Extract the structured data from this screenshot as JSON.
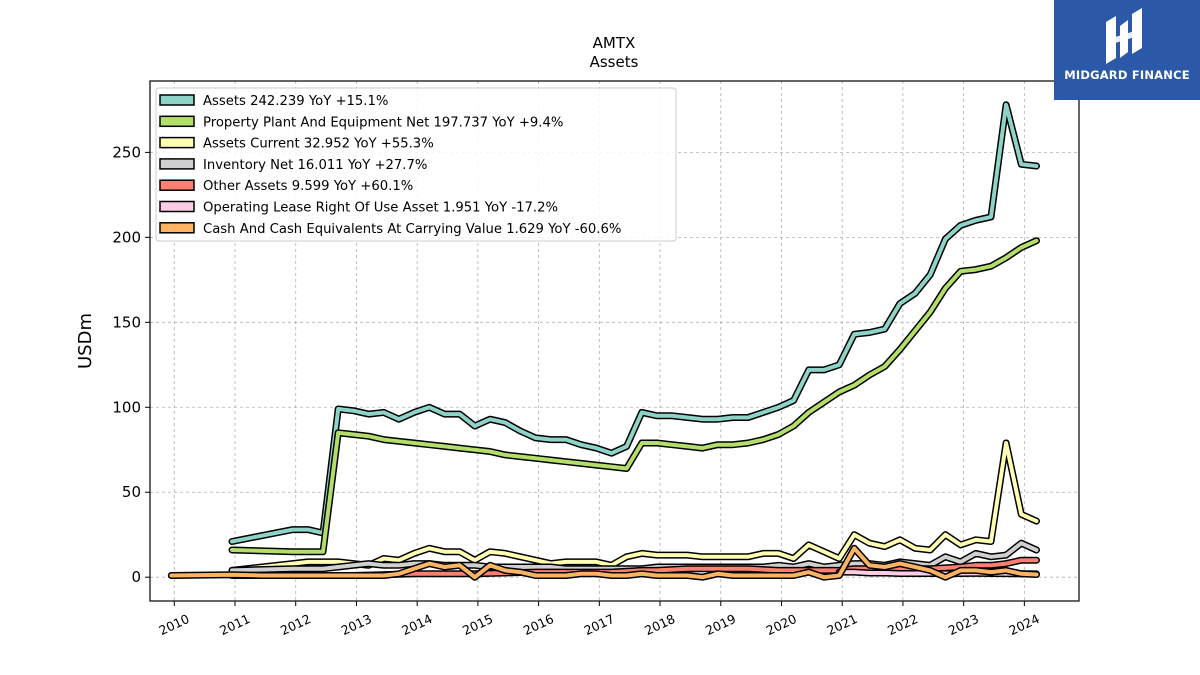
{
  "chart_data": {
    "type": "line",
    "title": "AMTX",
    "subtitle": "Assets",
    "ylabel": "USDm",
    "xlabel": "",
    "xlim": [
      2009.6,
      2024.9
    ],
    "ylim": [
      -14,
      292
    ],
    "yticks": [
      0,
      50,
      100,
      150,
      200,
      250
    ],
    "xticks": [
      2010,
      2011,
      2012,
      2013,
      2014,
      2015,
      2016,
      2017,
      2018,
      2019,
      2020,
      2021,
      2022,
      2023,
      2024
    ],
    "grid": true,
    "legend_position": "upper-left",
    "series": [
      {
        "name": "Assets  242.239 YoY +15.1%",
        "color": "#8dd3c7",
        "points": [
          [
            2010.95,
            21
          ],
          [
            2011.95,
            28
          ],
          [
            2012.2,
            28
          ],
          [
            2012.45,
            26
          ],
          [
            2012.7,
            99
          ],
          [
            2012.95,
            98
          ],
          [
            2013.2,
            96
          ],
          [
            2013.45,
            97
          ],
          [
            2013.7,
            93
          ],
          [
            2013.95,
            97
          ],
          [
            2014.2,
            100
          ],
          [
            2014.45,
            96
          ],
          [
            2014.7,
            96
          ],
          [
            2014.95,
            89
          ],
          [
            2015.2,
            93
          ],
          [
            2015.45,
            91
          ],
          [
            2015.7,
            86
          ],
          [
            2015.95,
            82
          ],
          [
            2016.2,
            81
          ],
          [
            2016.45,
            81
          ],
          [
            2016.7,
            78
          ],
          [
            2016.95,
            76
          ],
          [
            2017.2,
            73
          ],
          [
            2017.45,
            77
          ],
          [
            2017.7,
            97
          ],
          [
            2017.95,
            95
          ],
          [
            2018.2,
            95
          ],
          [
            2018.45,
            94
          ],
          [
            2018.7,
            93
          ],
          [
            2018.95,
            93
          ],
          [
            2019.2,
            94
          ],
          [
            2019.45,
            94
          ],
          [
            2019.7,
            97
          ],
          [
            2019.95,
            100
          ],
          [
            2020.2,
            104
          ],
          [
            2020.45,
            122
          ],
          [
            2020.7,
            122
          ],
          [
            2020.95,
            125
          ],
          [
            2021.2,
            143
          ],
          [
            2021.45,
            144
          ],
          [
            2021.7,
            146
          ],
          [
            2021.95,
            161
          ],
          [
            2022.2,
            167
          ],
          [
            2022.45,
            178
          ],
          [
            2022.7,
            199
          ],
          [
            2022.95,
            207
          ],
          [
            2023.2,
            210
          ],
          [
            2023.45,
            212
          ],
          [
            2023.7,
            278
          ],
          [
            2023.95,
            243
          ],
          [
            2024.2,
            242
          ]
        ]
      },
      {
        "name": "Property Plant And Equipment Net  197.737 YoY +9.4%",
        "color": "#b3de69",
        "points": [
          [
            2010.95,
            16
          ],
          [
            2011.95,
            15
          ],
          [
            2012.45,
            15
          ],
          [
            2012.7,
            85
          ],
          [
            2012.95,
            84
          ],
          [
            2013.2,
            83
          ],
          [
            2013.45,
            81
          ],
          [
            2013.7,
            80
          ],
          [
            2013.95,
            79
          ],
          [
            2014.2,
            78
          ],
          [
            2014.45,
            77
          ],
          [
            2014.7,
            76
          ],
          [
            2014.95,
            75
          ],
          [
            2015.2,
            74
          ],
          [
            2015.45,
            72
          ],
          [
            2015.7,
            71
          ],
          [
            2015.95,
            70
          ],
          [
            2016.2,
            69
          ],
          [
            2016.45,
            68
          ],
          [
            2016.7,
            67
          ],
          [
            2016.95,
            66
          ],
          [
            2017.2,
            65
          ],
          [
            2017.45,
            64
          ],
          [
            2017.7,
            79
          ],
          [
            2017.95,
            79
          ],
          [
            2018.2,
            78
          ],
          [
            2018.45,
            77
          ],
          [
            2018.7,
            76
          ],
          [
            2018.95,
            78
          ],
          [
            2019.2,
            78
          ],
          [
            2019.45,
            79
          ],
          [
            2019.7,
            81
          ],
          [
            2019.95,
            84
          ],
          [
            2020.2,
            89
          ],
          [
            2020.45,
            97
          ],
          [
            2020.7,
            103
          ],
          [
            2020.95,
            109
          ],
          [
            2021.2,
            113
          ],
          [
            2021.45,
            119
          ],
          [
            2021.7,
            124
          ],
          [
            2021.95,
            134
          ],
          [
            2022.2,
            145
          ],
          [
            2022.45,
            156
          ],
          [
            2022.7,
            170
          ],
          [
            2022.95,
            180
          ],
          [
            2023.2,
            181
          ],
          [
            2023.45,
            183
          ],
          [
            2023.7,
            188
          ],
          [
            2023.95,
            194
          ],
          [
            2024.2,
            198
          ]
        ]
      },
      {
        "name": "Assets Current  32.952 YoY +55.3%",
        "color": "#ffffb3",
        "points": [
          [
            2010.95,
            4
          ],
          [
            2011.95,
            8
          ],
          [
            2012.2,
            9
          ],
          [
            2012.45,
            9
          ],
          [
            2012.7,
            9
          ],
          [
            2012.95,
            8
          ],
          [
            2013.2,
            7
          ],
          [
            2013.45,
            11
          ],
          [
            2013.7,
            10
          ],
          [
            2013.95,
            14
          ],
          [
            2014.2,
            17
          ],
          [
            2014.45,
            15
          ],
          [
            2014.7,
            15
          ],
          [
            2014.95,
            10
          ],
          [
            2015.2,
            15
          ],
          [
            2015.45,
            14
          ],
          [
            2015.7,
            12
          ],
          [
            2015.95,
            10
          ],
          [
            2016.2,
            8
          ],
          [
            2016.45,
            9
          ],
          [
            2016.7,
            9
          ],
          [
            2016.95,
            9
          ],
          [
            2017.2,
            7
          ],
          [
            2017.45,
            12
          ],
          [
            2017.7,
            14
          ],
          [
            2017.95,
            13
          ],
          [
            2018.2,
            13
          ],
          [
            2018.45,
            13
          ],
          [
            2018.7,
            12
          ],
          [
            2018.95,
            12
          ],
          [
            2019.2,
            12
          ],
          [
            2019.45,
            12
          ],
          [
            2019.7,
            14
          ],
          [
            2019.95,
            14
          ],
          [
            2020.2,
            11
          ],
          [
            2020.45,
            19
          ],
          [
            2020.7,
            15
          ],
          [
            2020.95,
            11
          ],
          [
            2021.2,
            25
          ],
          [
            2021.45,
            20
          ],
          [
            2021.7,
            18
          ],
          [
            2021.95,
            22
          ],
          [
            2022.2,
            17
          ],
          [
            2022.45,
            16
          ],
          [
            2022.7,
            25
          ],
          [
            2022.95,
            19
          ],
          [
            2023.2,
            22
          ],
          [
            2023.45,
            21
          ],
          [
            2023.7,
            79
          ],
          [
            2023.95,
            37
          ],
          [
            2024.2,
            33
          ]
        ]
      },
      {
        "name": "Inventory Net  16.011 YoY +27.7%",
        "color": "#d0d0d0",
        "points": [
          [
            2010.95,
            4
          ],
          [
            2011.95,
            5
          ],
          [
            2012.2,
            5
          ],
          [
            2012.45,
            5
          ],
          [
            2012.7,
            6
          ],
          [
            2012.95,
            7
          ],
          [
            2013.2,
            8
          ],
          [
            2013.45,
            7
          ],
          [
            2013.7,
            7
          ],
          [
            2013.95,
            8
          ],
          [
            2014.2,
            8
          ],
          [
            2014.45,
            7
          ],
          [
            2014.7,
            7
          ],
          [
            2014.95,
            7
          ],
          [
            2015.2,
            6
          ],
          [
            2015.45,
            6
          ],
          [
            2015.7,
            6
          ],
          [
            2015.95,
            6
          ],
          [
            2016.2,
            6
          ],
          [
            2016.45,
            5
          ],
          [
            2016.7,
            5
          ],
          [
            2016.95,
            5
          ],
          [
            2017.2,
            5
          ],
          [
            2017.45,
            5
          ],
          [
            2017.7,
            5
          ],
          [
            2017.95,
            6
          ],
          [
            2018.2,
            6
          ],
          [
            2018.45,
            6
          ],
          [
            2018.7,
            6
          ],
          [
            2018.95,
            6
          ],
          [
            2019.2,
            6
          ],
          [
            2019.45,
            6
          ],
          [
            2019.7,
            6
          ],
          [
            2019.95,
            7
          ],
          [
            2020.2,
            6
          ],
          [
            2020.45,
            8
          ],
          [
            2020.7,
            6
          ],
          [
            2020.95,
            7
          ],
          [
            2021.2,
            8
          ],
          [
            2021.45,
            8
          ],
          [
            2021.7,
            7
          ],
          [
            2021.95,
            9
          ],
          [
            2022.2,
            8
          ],
          [
            2022.45,
            7
          ],
          [
            2022.7,
            12
          ],
          [
            2022.95,
            9
          ],
          [
            2023.2,
            14
          ],
          [
            2023.45,
            12
          ],
          [
            2023.7,
            13
          ],
          [
            2023.95,
            20
          ],
          [
            2024.2,
            16
          ]
        ]
      },
      {
        "name": "Other Assets  9.599 YoY +60.1%",
        "color": "#fb8072",
        "points": [
          [
            2010.95,
            1
          ],
          [
            2011.95,
            1
          ],
          [
            2012.95,
            1
          ],
          [
            2013.95,
            2
          ],
          [
            2014.95,
            2
          ],
          [
            2015.95,
            3
          ],
          [
            2016.2,
            3
          ],
          [
            2016.95,
            3
          ],
          [
            2017.2,
            3
          ],
          [
            2017.7,
            4
          ],
          [
            2017.95,
            4
          ],
          [
            2018.45,
            5
          ],
          [
            2018.95,
            5
          ],
          [
            2019.45,
            5
          ],
          [
            2019.95,
            4
          ],
          [
            2020.2,
            4
          ],
          [
            2020.7,
            4
          ],
          [
            2020.95,
            4
          ],
          [
            2021.2,
            5
          ],
          [
            2021.7,
            5
          ],
          [
            2021.95,
            5
          ],
          [
            2022.45,
            5
          ],
          [
            2022.95,
            6
          ],
          [
            2023.2,
            7
          ],
          [
            2023.45,
            7
          ],
          [
            2023.7,
            8
          ],
          [
            2023.95,
            10
          ],
          [
            2024.2,
            10
          ]
        ]
      },
      {
        "name": "Operating Lease Right Of Use Asset  1.951 YoY -17.2%",
        "color": "#fccde5",
        "points": [
          [
            2020.95,
            3
          ],
          [
            2021.2,
            3
          ],
          [
            2021.45,
            2.5
          ],
          [
            2021.7,
            2.5
          ],
          [
            2021.95,
            2.2
          ],
          [
            2022.2,
            2.2
          ],
          [
            2022.45,
            2.2
          ],
          [
            2022.7,
            2.1
          ],
          [
            2022.95,
            2.2
          ],
          [
            2023.2,
            2.3
          ],
          [
            2023.45,
            2.2
          ],
          [
            2023.7,
            2.1
          ],
          [
            2023.95,
            2.0
          ],
          [
            2024.2,
            1.95
          ]
        ]
      },
      {
        "name": "Cash And Cash Equivalents At Carrying Value  1.629 YoY -60.6%",
        "color": "#fdb462",
        "points": [
          [
            2009.95,
            1
          ],
          [
            2010.95,
            1.5
          ],
          [
            2011.45,
            1
          ],
          [
            2011.95,
            1
          ],
          [
            2012.45,
            1
          ],
          [
            2012.95,
            1
          ],
          [
            2013.45,
            1
          ],
          [
            2013.7,
            2
          ],
          [
            2013.95,
            5
          ],
          [
            2014.2,
            8
          ],
          [
            2014.45,
            6
          ],
          [
            2014.7,
            7
          ],
          [
            2014.95,
            0
          ],
          [
            2015.2,
            7
          ],
          [
            2015.45,
            4
          ],
          [
            2015.7,
            3
          ],
          [
            2015.95,
            1
          ],
          [
            2016.2,
            1
          ],
          [
            2016.45,
            1
          ],
          [
            2016.7,
            2
          ],
          [
            2016.95,
            2
          ],
          [
            2017.2,
            1
          ],
          [
            2017.45,
            1
          ],
          [
            2017.7,
            2
          ],
          [
            2017.95,
            1
          ],
          [
            2018.2,
            1
          ],
          [
            2018.45,
            1
          ],
          [
            2018.7,
            0
          ],
          [
            2018.95,
            2
          ],
          [
            2019.2,
            1
          ],
          [
            2019.45,
            1
          ],
          [
            2019.7,
            1
          ],
          [
            2019.95,
            1
          ],
          [
            2020.2,
            1
          ],
          [
            2020.45,
            3
          ],
          [
            2020.7,
            0
          ],
          [
            2020.95,
            1
          ],
          [
            2021.2,
            17
          ],
          [
            2021.45,
            7
          ],
          [
            2021.7,
            6
          ],
          [
            2021.95,
            8
          ],
          [
            2022.2,
            6
          ],
          [
            2022.45,
            4
          ],
          [
            2022.7,
            0
          ],
          [
            2022.95,
            4
          ],
          [
            2023.2,
            4
          ],
          [
            2023.45,
            3
          ],
          [
            2023.7,
            4
          ],
          [
            2023.95,
            2
          ],
          [
            2024.2,
            1.6
          ]
        ]
      }
    ]
  },
  "brand": {
    "name": "MIDGARD FINANCE",
    "bg_color": "#2b59a8"
  }
}
